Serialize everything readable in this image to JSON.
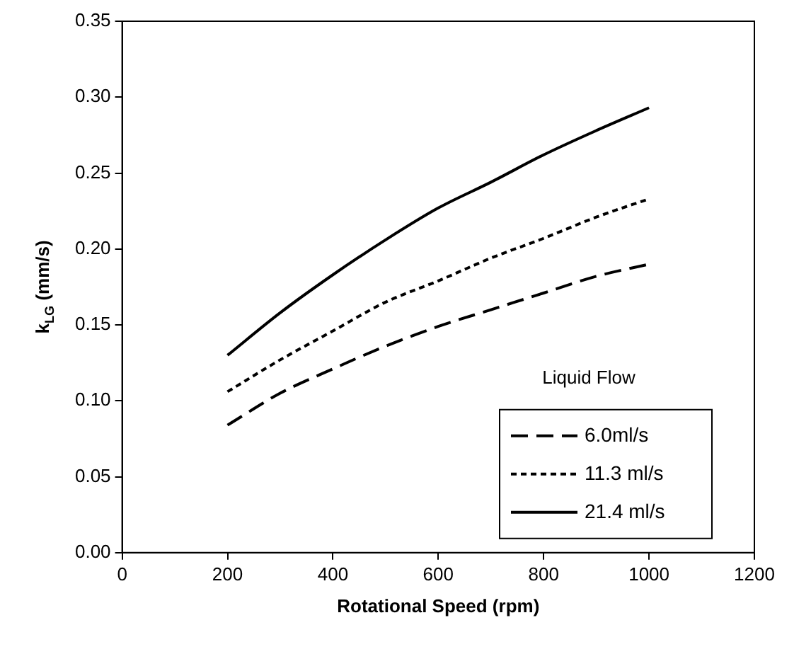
{
  "chart_data": {
    "type": "line",
    "xlabel": "Rotational Speed (rpm)",
    "ylabel": "k$_{LG}$ (mm/s)",
    "legend_title": "Liquid Flow",
    "legend": "bottom right",
    "grid": false,
    "marker": "none",
    "xlim": [
      0,
      1200
    ],
    "xticks": [
      0,
      200,
      400,
      600,
      800,
      1000,
      1200
    ],
    "ylim": [
      0,
      0.35
    ],
    "yticks": [
      {
        "value": 0,
        "label": "0.00"
      },
      0.05,
      {
        "value": 0.1,
        "label": "0.10"
      },
      0.15,
      {
        "value": 0.2,
        "label": "0.20"
      },
      0.25,
      {
        "value": 0.3,
        "label": "0.30"
      },
      0.35
    ],
    "x": [
      200,
      300,
      400,
      500,
      600,
      700,
      800,
      900,
      1000
    ],
    "series": [
      {
        "name": "6.0ml/s",
        "color": "#000000",
        "line_style": "dashed",
        "values": [
          0.084,
          0.105,
          0.121,
          0.136,
          0.149,
          0.16,
          0.171,
          0.182,
          0.19
        ]
      },
      {
        "name": "11.3 ml/s",
        "color": "#000000",
        "line_style": "dotted",
        "values": [
          0.106,
          0.127,
          0.146,
          0.165,
          0.179,
          0.194,
          0.207,
          0.221,
          0.233
        ]
      },
      {
        "name": "21.4 ml/s",
        "color": "#000000",
        "line_style": "solid",
        "values": [
          0.13,
          0.158,
          0.183,
          0.206,
          0.227,
          0.244,
          0.262,
          0.278,
          0.293
        ]
      }
    ]
  }
}
